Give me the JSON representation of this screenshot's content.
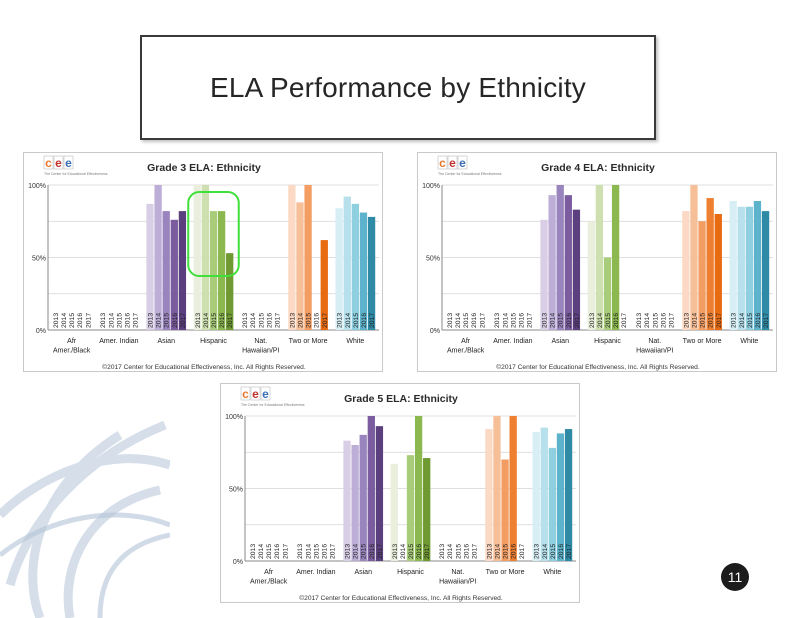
{
  "slide": {
    "title": "ELA Performance  by Ethnicity",
    "page_number": "11"
  },
  "logo": {
    "letters": [
      "c",
      "e",
      "e"
    ],
    "tagline": "The Center for Educational Effectiveness",
    "colors": [
      "#e8782c",
      "#c0342c",
      "#3a6fb5"
    ]
  },
  "highlight_color": "#3fe03a",
  "series_colors": {
    "asian": [
      "#d8cfe6",
      "#bcaed6",
      "#9a84bd",
      "#7b5d9f",
      "#5c3f7e"
    ],
    "hispanic": [
      "#e9efdc",
      "#cfe0b0",
      "#a9cc7a",
      "#8bb84f",
      "#6f9a32"
    ],
    "two_or_more": [
      "#fbd9c4",
      "#f7bf98",
      "#f39d63",
      "#ee7f31",
      "#e86b12"
    ],
    "white": [
      "#d7eef5",
      "#b5e0ec",
      "#8ecfe0",
      "#5eb3cc",
      "#2f8aa6"
    ]
  },
  "chart_data": [
    {
      "type": "bar",
      "title": "Grade 3 ELA: Ethnicity",
      "y_ticks": [
        "100%",
        "50%",
        "0%"
      ],
      "ylim": [
        0,
        100
      ],
      "years": [
        "2013",
        "2014",
        "2015",
        "2016",
        "2017"
      ],
      "categories": [
        {
          "key": "afr",
          "label_lines": [
            "Afr",
            "Amer./Black"
          ],
          "color_key": "asian",
          "values": [
            null,
            null,
            null,
            null,
            null
          ]
        },
        {
          "key": "amer-indian",
          "label_lines": [
            "Amer. Indian"
          ],
          "color_key": "asian",
          "values": [
            null,
            null,
            null,
            null,
            null
          ]
        },
        {
          "key": "asian",
          "label_lines": [
            "Asian"
          ],
          "color_key": "asian",
          "values": [
            87,
            100,
            82,
            76,
            82
          ]
        },
        {
          "key": "hispanic",
          "label_lines": [
            "Hispanic"
          ],
          "color_key": "hispanic",
          "values": [
            100,
            100,
            82,
            82,
            53
          ]
        },
        {
          "key": "nat-hawaiian",
          "label_lines": [
            "Nat.",
            "Hawaiian/PI"
          ],
          "color_key": "hispanic",
          "values": [
            null,
            null,
            null,
            null,
            null
          ]
        },
        {
          "key": "two-or-more",
          "label_lines": [
            "Two or More"
          ],
          "color_key": "two_or_more",
          "values": [
            100,
            88,
            100,
            null,
            62
          ]
        },
        {
          "key": "white",
          "label_lines": [
            "White"
          ],
          "color_key": "white",
          "values": [
            84,
            92,
            87,
            81,
            78
          ]
        }
      ],
      "highlight_category": "hispanic",
      "footer": "©2017 Center for Educational Effectiveness, Inc. All Rights Reserved."
    },
    {
      "type": "bar",
      "title": "Grade 4 ELA: Ethnicity",
      "y_ticks": [
        "100%",
        "50%",
        "0%"
      ],
      "ylim": [
        0,
        100
      ],
      "years": [
        "2013",
        "2014",
        "2015",
        "2016",
        "2017"
      ],
      "categories": [
        {
          "key": "afr",
          "label_lines": [
            "Afr",
            "Amer./Black"
          ],
          "color_key": "asian",
          "values": [
            null,
            null,
            null,
            null,
            null
          ]
        },
        {
          "key": "amer-indian",
          "label_lines": [
            "Amer. Indian"
          ],
          "color_key": "asian",
          "values": [
            null,
            null,
            null,
            null,
            null
          ]
        },
        {
          "key": "asian",
          "label_lines": [
            "Asian"
          ],
          "color_key": "asian",
          "values": [
            76,
            93,
            100,
            93,
            83
          ]
        },
        {
          "key": "hispanic",
          "label_lines": [
            "Hispanic"
          ],
          "color_key": "hispanic",
          "values": [
            75,
            100,
            50,
            100,
            null
          ]
        },
        {
          "key": "nat-hawaiian",
          "label_lines": [
            "Nat.",
            "Hawaiian/PI"
          ],
          "color_key": "hispanic",
          "values": [
            null,
            null,
            null,
            null,
            null
          ]
        },
        {
          "key": "two-or-more",
          "label_lines": [
            "Two or More"
          ],
          "color_key": "two_or_more",
          "values": [
            82,
            100,
            75,
            91,
            80
          ]
        },
        {
          "key": "white",
          "label_lines": [
            "White"
          ],
          "color_key": "white",
          "values": [
            89,
            85,
            85,
            89,
            82
          ]
        }
      ],
      "highlight_category": null,
      "footer": "©2017 Center for Educational Effectiveness, Inc. All Rights Reserved."
    },
    {
      "type": "bar",
      "title": "Grade 5 ELA: Ethnicity",
      "y_ticks": [
        "100%",
        "50%",
        "0%"
      ],
      "ylim": [
        0,
        100
      ],
      "years": [
        "2013",
        "2014",
        "2015",
        "2016",
        "2017"
      ],
      "categories": [
        {
          "key": "afr",
          "label_lines": [
            "Afr",
            "Amer./Black"
          ],
          "color_key": "asian",
          "values": [
            null,
            null,
            null,
            null,
            null
          ]
        },
        {
          "key": "amer-indian",
          "label_lines": [
            "Amer. Indian"
          ],
          "color_key": "asian",
          "values": [
            null,
            null,
            null,
            null,
            null
          ]
        },
        {
          "key": "asian",
          "label_lines": [
            "Asian"
          ],
          "color_key": "asian",
          "values": [
            83,
            80,
            87,
            100,
            93
          ]
        },
        {
          "key": "hispanic",
          "label_lines": [
            "Hispanic"
          ],
          "color_key": "hispanic",
          "values": [
            67,
            null,
            73,
            100,
            71
          ]
        },
        {
          "key": "nat-hawaiian",
          "label_lines": [
            "Nat.",
            "Hawaiian/PI"
          ],
          "color_key": "hispanic",
          "values": [
            null,
            null,
            null,
            null,
            null
          ]
        },
        {
          "key": "two-or-more",
          "label_lines": [
            "Two or More"
          ],
          "color_key": "two_or_more",
          "values": [
            91,
            100,
            70,
            100,
            null
          ]
        },
        {
          "key": "white",
          "label_lines": [
            "White"
          ],
          "color_key": "white",
          "values": [
            89,
            92,
            78,
            88,
            91
          ]
        }
      ],
      "highlight_category": null,
      "footer": "©2017 Center for Educational Effectiveness, Inc. All Rights Reserved."
    }
  ]
}
